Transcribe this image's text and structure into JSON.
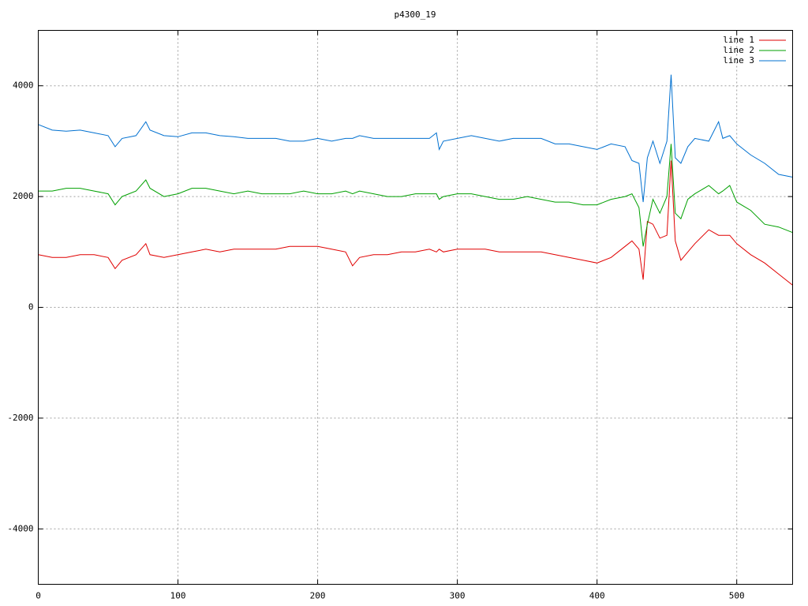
{
  "chart_data": {
    "type": "line",
    "title": "p4300_19",
    "x": [
      0,
      10,
      20,
      30,
      40,
      50,
      55,
      60,
      70,
      77,
      80,
      90,
      100,
      110,
      120,
      130,
      140,
      150,
      160,
      170,
      180,
      190,
      200,
      210,
      220,
      225,
      230,
      240,
      250,
      260,
      270,
      280,
      285,
      287,
      290,
      300,
      310,
      320,
      330,
      340,
      350,
      360,
      370,
      380,
      390,
      400,
      410,
      420,
      425,
      430,
      433,
      436,
      440,
      445,
      450,
      453,
      456,
      460,
      465,
      470,
      480,
      487,
      490,
      495,
      500,
      510,
      520,
      530,
      540
    ],
    "series": [
      {
        "name": "line 1",
        "color": "#e00000",
        "values": [
          950,
          900,
          900,
          950,
          950,
          900,
          700,
          850,
          950,
          1150,
          950,
          900,
          950,
          1000,
          1050,
          1000,
          1050,
          1050,
          1050,
          1050,
          1100,
          1100,
          1100,
          1050,
          1000,
          750,
          900,
          950,
          950,
          1000,
          1000,
          1050,
          1000,
          1050,
          1000,
          1050,
          1050,
          1050,
          1000,
          1000,
          1000,
          1000,
          950,
          900,
          850,
          800,
          900,
          1100,
          1200,
          1050,
          500,
          1550,
          1500,
          1250,
          1300,
          2650,
          1200,
          850,
          1000,
          1150,
          1400,
          1300,
          1300,
          1300,
          1150,
          950,
          800,
          600,
          400
        ]
      },
      {
        "name": "line 2",
        "color": "#00a000",
        "values": [
          2100,
          2100,
          2150,
          2150,
          2100,
          2050,
          1850,
          2000,
          2100,
          2300,
          2150,
          2000,
          2050,
          2150,
          2150,
          2100,
          2050,
          2100,
          2050,
          2050,
          2050,
          2100,
          2050,
          2050,
          2100,
          2050,
          2100,
          2050,
          2000,
          2000,
          2050,
          2050,
          2050,
          1950,
          2000,
          2050,
          2050,
          2000,
          1950,
          1950,
          2000,
          1950,
          1900,
          1900,
          1850,
          1850,
          1950,
          2000,
          2050,
          1800,
          1100,
          1500,
          1950,
          1700,
          2000,
          2950,
          1700,
          1600,
          1950,
          2050,
          2200,
          2050,
          2100,
          2200,
          1900,
          1750,
          1500,
          1450,
          1350
        ]
      },
      {
        "name": "line 3",
        "color": "#0070d0",
        "values": [
          3300,
          3200,
          3180,
          3200,
          3150,
          3100,
          2900,
          3050,
          3100,
          3350,
          3200,
          3100,
          3080,
          3150,
          3150,
          3100,
          3080,
          3050,
          3050,
          3050,
          3000,
          3000,
          3050,
          3000,
          3050,
          3050,
          3100,
          3050,
          3050,
          3050,
          3050,
          3050,
          3150,
          2850,
          3000,
          3050,
          3100,
          3050,
          3000,
          3050,
          3050,
          3050,
          2950,
          2950,
          2900,
          2850,
          2950,
          2900,
          2650,
          2600,
          1900,
          2700,
          3000,
          2600,
          3000,
          4200,
          2700,
          2600,
          2900,
          3050,
          3000,
          3350,
          3050,
          3100,
          2950,
          2750,
          2600,
          2400,
          2350
        ]
      }
    ],
    "xlim": [
      0,
      540
    ],
    "xticks": [
      0,
      100,
      200,
      300,
      400,
      500
    ],
    "ylim": [
      -5000,
      5000
    ],
    "yticks": [
      -4000,
      -2000,
      0,
      2000,
      4000
    ],
    "grid": true,
    "legend": "top-right"
  }
}
